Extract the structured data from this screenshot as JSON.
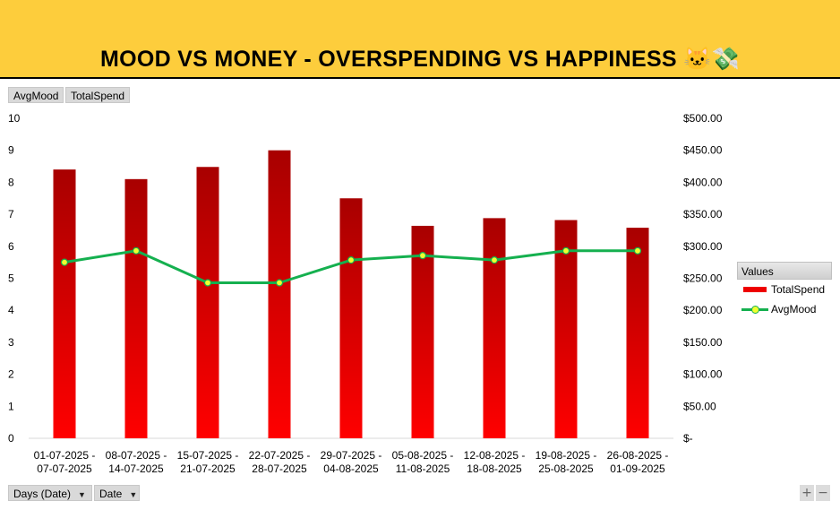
{
  "title": "MOOD VS MONEY - OVERSPENDING VS HAPPINESS 🐱💸",
  "field_buttons": {
    "mood": "AvgMood",
    "spend": "TotalSpend"
  },
  "axis_buttons": {
    "days": "Days (Date)",
    "date": "Date",
    "dropdown_glyph": "▼"
  },
  "legend": {
    "header": "Values",
    "items": [
      "TotalSpend",
      "AvgMood"
    ]
  },
  "zoom": {
    "plus": "+",
    "minus": "−"
  },
  "colors": {
    "title_band": "#fdcd3c",
    "bar_top": "#a80000",
    "bar_bottom": "#ff0000",
    "line": "#15b04f",
    "marker": "#f0ff30"
  },
  "chart_data": {
    "type": "bar",
    "categories": [
      [
        "01-07-2025 -",
        "07-07-2025"
      ],
      [
        "08-07-2025 -",
        "14-07-2025"
      ],
      [
        "15-07-2025 -",
        "21-07-2025"
      ],
      [
        "22-07-2025 -",
        "28-07-2025"
      ],
      [
        "29-07-2025 -",
        "04-08-2025"
      ],
      [
        "05-08-2025 -",
        "11-08-2025"
      ],
      [
        "12-08-2025 -",
        "18-08-2025"
      ],
      [
        "19-08-2025 -",
        "25-08-2025"
      ],
      [
        "26-08-2025 -",
        "01-09-2025"
      ]
    ],
    "series": [
      {
        "name": "TotalSpend",
        "type": "bar",
        "axis": "right",
        "values": [
          420,
          405,
          424,
          450,
          375,
          332,
          344,
          341,
          329
        ]
      },
      {
        "name": "AvgMood",
        "type": "line",
        "axis": "left",
        "values": [
          5.5,
          5.86,
          4.86,
          4.86,
          5.57,
          5.71,
          5.57,
          5.86,
          5.86
        ]
      }
    ],
    "y_left": {
      "min": 0,
      "max": 10,
      "ticks": [
        "0",
        "1",
        "2",
        "3",
        "4",
        "5",
        "6",
        "7",
        "8",
        "9",
        "10"
      ]
    },
    "y_right": {
      "min": 0,
      "max": 500,
      "ticks": [
        "$-",
        "$50.00",
        "$100.00",
        "$150.00",
        "$200.00",
        "$250.00",
        "$300.00",
        "$350.00",
        "$400.00",
        "$450.00",
        "$500.00"
      ]
    },
    "legend_position": "right",
    "grid": false
  }
}
